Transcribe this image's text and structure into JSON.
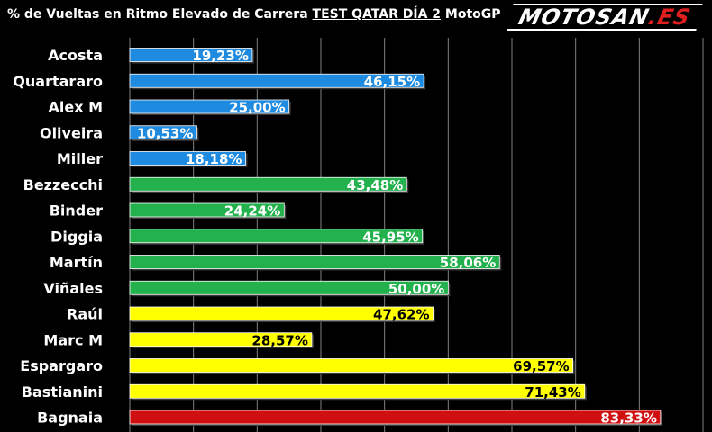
{
  "title": {
    "prefix": "% de Vueltas en Ritmo Elevado de Carrera ",
    "underlined": "TEST QATAR DÍA 2",
    "suffix": " MotoGP"
  },
  "logo": {
    "main": "MOTOSAN",
    "accent": ".ES"
  },
  "colors": {
    "background": "#000000",
    "grid": "#808080",
    "blue": "#1e8ae0",
    "green": "#22b14c",
    "yellow": "#ffff00",
    "red": "#d01010",
    "label_light": "#ffffff",
    "label_dark": "#000000"
  },
  "chart_data": {
    "type": "bar",
    "orientation": "horizontal",
    "title": "% de Vueltas en Ritmo Elevado de Carrera TEST QATAR DÍA 2 MotoGP",
    "categories": [
      "Acosta",
      "Quartararo",
      "Alex M",
      "Oliveira",
      "Miller",
      "Bezzecchi",
      "Binder",
      "Diggia",
      "Martín",
      "Viñales",
      "Raúl",
      "Marc M",
      "Espargaro",
      "Bastianini",
      "Bagnaia"
    ],
    "values": [
      19.23,
      46.15,
      25.0,
      10.53,
      18.18,
      43.48,
      24.24,
      45.95,
      58.06,
      50.0,
      47.62,
      28.57,
      69.57,
      71.43,
      83.33
    ],
    "value_labels": [
      "19,23%",
      "46,15%",
      "25,00%",
      "10,53%",
      "18,18%",
      "43,48%",
      "24,24%",
      "45,95%",
      "58,06%",
      "50,00%",
      "47,62%",
      "28,57%",
      "69,57%",
      "71,43%",
      "83,33%"
    ],
    "bar_colors": [
      "blue",
      "blue",
      "blue",
      "blue",
      "blue",
      "green",
      "green",
      "green",
      "green",
      "green",
      "yellow",
      "yellow",
      "yellow",
      "yellow",
      "red"
    ],
    "xlim": [
      0,
      90
    ],
    "grid": true,
    "legend": "none"
  }
}
